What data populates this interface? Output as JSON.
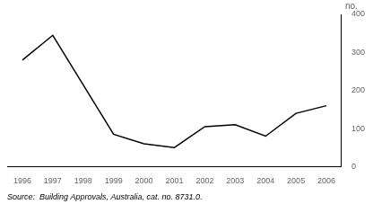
{
  "chart_data": {
    "type": "line",
    "x": [
      1996,
      1997,
      1998,
      1999,
      2000,
      2001,
      2002,
      2003,
      2004,
      2005,
      2006
    ],
    "values": [
      280,
      345,
      215,
      85,
      60,
      50,
      105,
      110,
      80,
      140,
      160
    ],
    "color": "#000000",
    "xlim": [
      1995.5,
      2006.5
    ],
    "xticks": [
      1996,
      1997,
      1998,
      1999,
      2000,
      2001,
      2002,
      2003,
      2004,
      2005,
      2006
    ],
    "ylim": [
      0,
      400
    ],
    "yticks": [
      0,
      100,
      200,
      300,
      400
    ],
    "ylabel": "no.",
    "annotation": "Source:  Building Approvals, Australia, cat. no. 8731.0.",
    "grid": false
  }
}
